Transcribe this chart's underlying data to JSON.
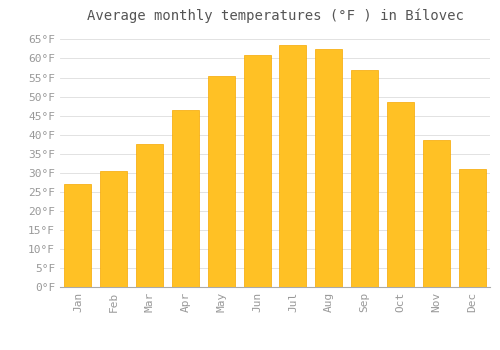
{
  "title": "Average monthly temperatures (°F ) in Bílovec",
  "months": [
    "Jan",
    "Feb",
    "Mar",
    "Apr",
    "May",
    "Jun",
    "Jul",
    "Aug",
    "Sep",
    "Oct",
    "Nov",
    "Dec"
  ],
  "values": [
    27,
    30.5,
    37.5,
    46.5,
    55.5,
    61,
    63.5,
    62.5,
    57,
    48.5,
    38.5,
    31
  ],
  "bar_color_face": "#FFC125",
  "bar_color_edge": "#F5A800",
  "background_color": "#FFFFFF",
  "grid_color": "#DDDDDD",
  "ylim": [
    0,
    68
  ],
  "yticks": [
    0,
    5,
    10,
    15,
    20,
    25,
    30,
    35,
    40,
    45,
    50,
    55,
    60,
    65
  ],
  "ytick_labels": [
    "0°F",
    "5°F",
    "10°F",
    "15°F",
    "20°F",
    "25°F",
    "30°F",
    "35°F",
    "40°F",
    "45°F",
    "50°F",
    "55°F",
    "60°F",
    "65°F"
  ],
  "title_fontsize": 10,
  "tick_fontsize": 8,
  "font_family": "monospace",
  "tick_color": "#999999"
}
